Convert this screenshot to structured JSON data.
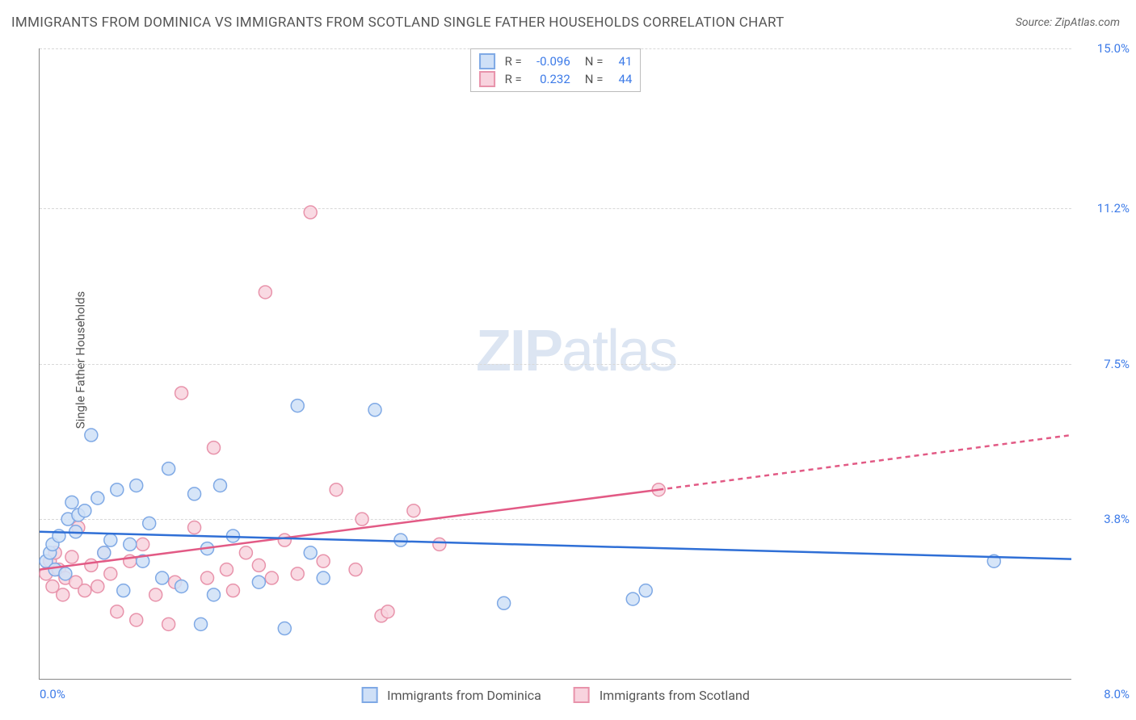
{
  "title": "IMMIGRANTS FROM DOMINICA VS IMMIGRANTS FROM SCOTLAND SINGLE FATHER HOUSEHOLDS CORRELATION CHART",
  "source": "Source: ZipAtlas.com",
  "ylabel": "Single Father Households",
  "watermark_a": "ZIP",
  "watermark_b": "atlas",
  "chart": {
    "type": "scatter",
    "xlim": [
      0,
      8.0
    ],
    "ylim": [
      0,
      15.0
    ],
    "x_axis_label_left": "0.0%",
    "x_axis_label_right": "8.0%",
    "y_ticks": [
      3.8,
      7.5,
      11.2,
      15.0
    ],
    "y_tick_labels": [
      "3.8%",
      "7.5%",
      "11.2%",
      "15.0%"
    ],
    "grid_color": "#d8d8d8",
    "background_color": "#ffffff",
    "series": {
      "dominica": {
        "label": "Immigrants from Dominica",
        "fill": "#cfe0f7",
        "stroke": "#7fa9e5",
        "line_color": "#2f6fd6",
        "r_value": "-0.096",
        "n_value": "41",
        "trend": {
          "x1": 0,
          "y1": 3.5,
          "x2": 8.0,
          "y2": 2.85
        },
        "points": [
          {
            "x": 0.05,
            "y": 2.8
          },
          {
            "x": 0.08,
            "y": 3.0
          },
          {
            "x": 0.1,
            "y": 3.2
          },
          {
            "x": 0.12,
            "y": 2.6
          },
          {
            "x": 0.15,
            "y": 3.4
          },
          {
            "x": 0.2,
            "y": 2.5
          },
          {
            "x": 0.22,
            "y": 3.8
          },
          {
            "x": 0.25,
            "y": 4.2
          },
          {
            "x": 0.28,
            "y": 3.5
          },
          {
            "x": 0.3,
            "y": 3.9
          },
          {
            "x": 0.35,
            "y": 4.0
          },
          {
            "x": 0.4,
            "y": 5.8
          },
          {
            "x": 0.45,
            "y": 4.3
          },
          {
            "x": 0.5,
            "y": 3.0
          },
          {
            "x": 0.55,
            "y": 3.3
          },
          {
            "x": 0.6,
            "y": 4.5
          },
          {
            "x": 0.65,
            "y": 2.1
          },
          {
            "x": 0.7,
            "y": 3.2
          },
          {
            "x": 0.75,
            "y": 4.6
          },
          {
            "x": 0.8,
            "y": 2.8
          },
          {
            "x": 0.85,
            "y": 3.7
          },
          {
            "x": 0.95,
            "y": 2.4
          },
          {
            "x": 1.0,
            "y": 5.0
          },
          {
            "x": 1.1,
            "y": 2.2
          },
          {
            "x": 1.2,
            "y": 4.4
          },
          {
            "x": 1.25,
            "y": 1.3
          },
          {
            "x": 1.3,
            "y": 3.1
          },
          {
            "x": 1.35,
            "y": 2.0
          },
          {
            "x": 1.4,
            "y": 4.6
          },
          {
            "x": 1.5,
            "y": 3.4
          },
          {
            "x": 1.7,
            "y": 2.3
          },
          {
            "x": 1.9,
            "y": 1.2
          },
          {
            "x": 2.0,
            "y": 6.5
          },
          {
            "x": 2.1,
            "y": 3.0
          },
          {
            "x": 2.2,
            "y": 2.4
          },
          {
            "x": 2.6,
            "y": 6.4
          },
          {
            "x": 2.8,
            "y": 3.3
          },
          {
            "x": 3.6,
            "y": 1.8
          },
          {
            "x": 4.6,
            "y": 1.9
          },
          {
            "x": 4.7,
            "y": 2.1
          },
          {
            "x": 7.4,
            "y": 2.8
          }
        ]
      },
      "scotland": {
        "label": "Immigrants from Scotland",
        "fill": "#f8d3de",
        "stroke": "#e893ab",
        "line_color": "#e25a85",
        "r_value": "0.232",
        "n_value": "44",
        "trend_solid": {
          "x1": 0,
          "y1": 2.6,
          "x2": 4.8,
          "y2": 4.5
        },
        "trend_dash": {
          "x1": 4.8,
          "y1": 4.5,
          "x2": 8.0,
          "y2": 5.8
        },
        "points": [
          {
            "x": 0.05,
            "y": 2.5
          },
          {
            "x": 0.08,
            "y": 2.8
          },
          {
            "x": 0.1,
            "y": 2.2
          },
          {
            "x": 0.12,
            "y": 3.0
          },
          {
            "x": 0.15,
            "y": 2.6
          },
          {
            "x": 0.18,
            "y": 2.0
          },
          {
            "x": 0.2,
            "y": 2.4
          },
          {
            "x": 0.25,
            "y": 2.9
          },
          {
            "x": 0.28,
            "y": 2.3
          },
          {
            "x": 0.3,
            "y": 3.6
          },
          {
            "x": 0.35,
            "y": 2.1
          },
          {
            "x": 0.4,
            "y": 2.7
          },
          {
            "x": 0.45,
            "y": 2.2
          },
          {
            "x": 0.5,
            "y": 3.0
          },
          {
            "x": 0.55,
            "y": 2.5
          },
          {
            "x": 0.6,
            "y": 1.6
          },
          {
            "x": 0.7,
            "y": 2.8
          },
          {
            "x": 0.75,
            "y": 1.4
          },
          {
            "x": 0.8,
            "y": 3.2
          },
          {
            "x": 0.9,
            "y": 2.0
          },
          {
            "x": 1.0,
            "y": 1.3
          },
          {
            "x": 1.05,
            "y": 2.3
          },
          {
            "x": 1.1,
            "y": 6.8
          },
          {
            "x": 1.2,
            "y": 3.6
          },
          {
            "x": 1.3,
            "y": 2.4
          },
          {
            "x": 1.35,
            "y": 5.5
          },
          {
            "x": 1.45,
            "y": 2.6
          },
          {
            "x": 1.5,
            "y": 2.1
          },
          {
            "x": 1.6,
            "y": 3.0
          },
          {
            "x": 1.7,
            "y": 2.7
          },
          {
            "x": 1.75,
            "y": 9.2
          },
          {
            "x": 1.8,
            "y": 2.4
          },
          {
            "x": 1.9,
            "y": 3.3
          },
          {
            "x": 2.0,
            "y": 2.5
          },
          {
            "x": 2.1,
            "y": 11.1
          },
          {
            "x": 2.2,
            "y": 2.8
          },
          {
            "x": 2.3,
            "y": 4.5
          },
          {
            "x": 2.45,
            "y": 2.6
          },
          {
            "x": 2.5,
            "y": 3.8
          },
          {
            "x": 2.65,
            "y": 1.5
          },
          {
            "x": 2.7,
            "y": 1.6
          },
          {
            "x": 2.9,
            "y": 4.0
          },
          {
            "x": 3.1,
            "y": 3.2
          },
          {
            "x": 4.8,
            "y": 4.5
          }
        ]
      }
    }
  },
  "legend_box": {
    "R_label": "R =",
    "N_label": "N ="
  }
}
